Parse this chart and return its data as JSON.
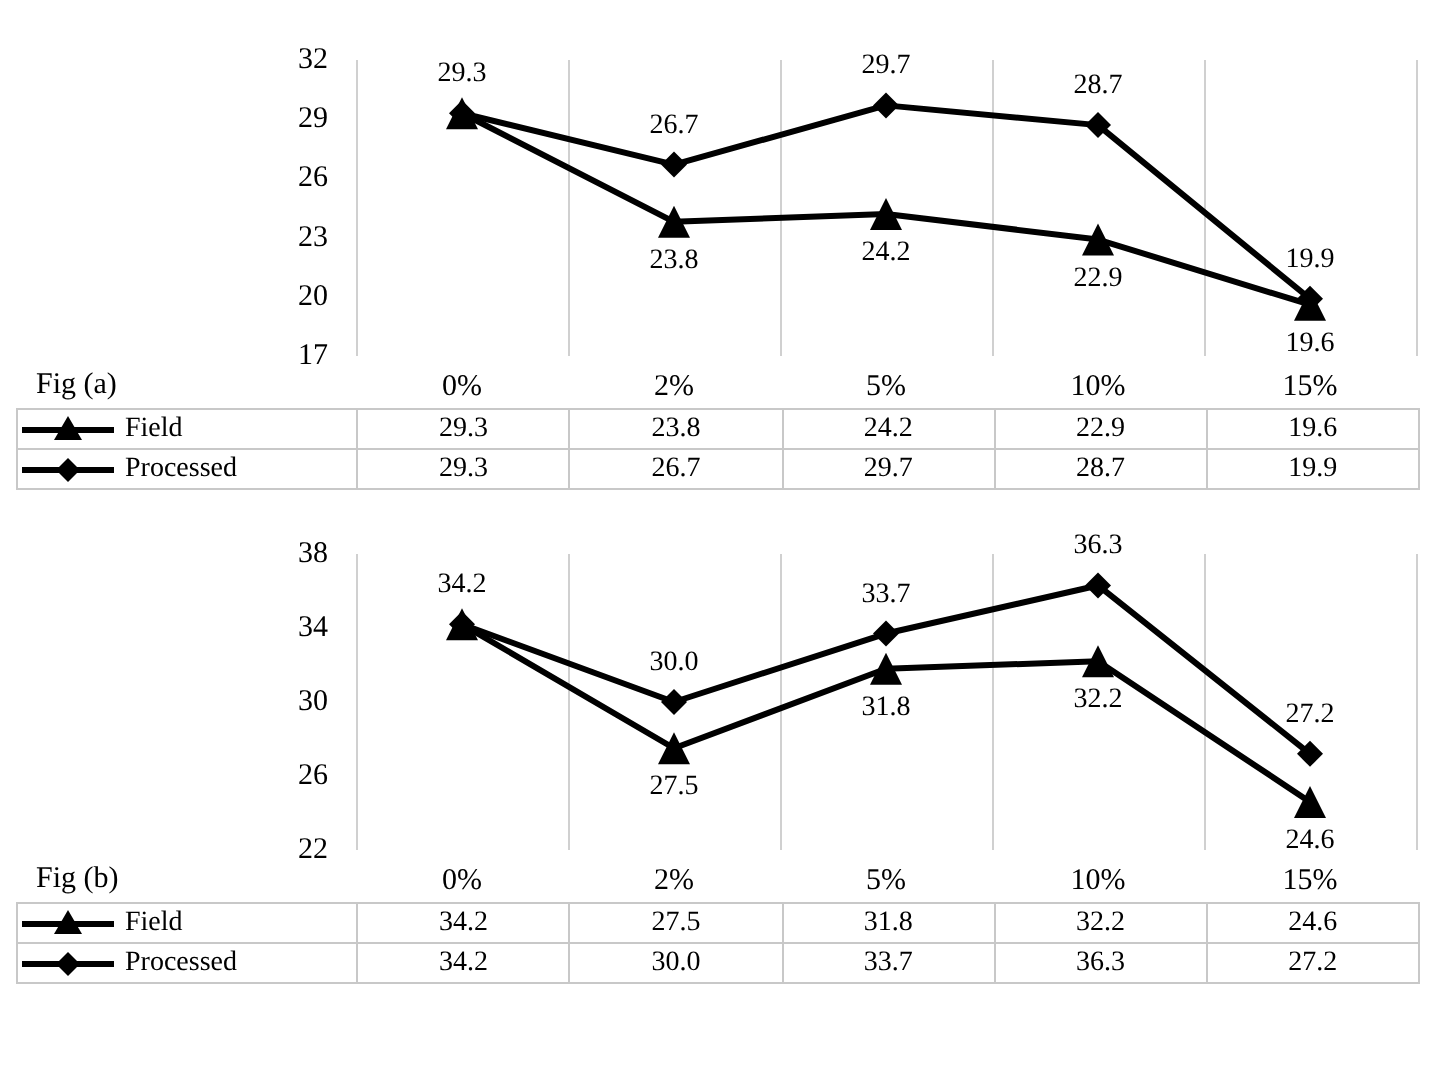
{
  "chart_data": [
    {
      "type": "line",
      "categories": [
        "0%",
        "2%",
        "5%",
        "10%",
        "15%"
      ],
      "ylim": [
        17,
        32
      ],
      "yticks": [
        17,
        20,
        23,
        26,
        29,
        32
      ],
      "grid": "x",
      "legend": "bottom",
      "line_style": "solid",
      "series": [
        {
          "name": "Field",
          "color": "#000000",
          "marker": "triangle",
          "values": [
            29.3,
            23.8,
            24.2,
            22.9,
            19.6
          ],
          "value_labels": [
            "29.3",
            "23.8",
            "24.2",
            "22.9",
            "19.6"
          ]
        },
        {
          "name": "Processed",
          "color": "#000000",
          "marker": "diamond",
          "values": [
            29.3,
            26.7,
            29.7,
            28.7,
            19.9
          ],
          "value_labels": [
            "29.3",
            "26.7",
            "29.7",
            "28.7",
            "19.9"
          ]
        }
      ],
      "annotations": [
        "Fig (a)",
        {
          "text": "29.3",
          "x": "0%",
          "y": 29.3
        },
        {
          "text": "26.7",
          "x": "2%",
          "y": 26.7
        },
        {
          "text": "23.8",
          "x": "2%",
          "y": 23.8
        },
        {
          "text": "29.7",
          "x": "5%",
          "y": 29.7
        },
        {
          "text": "24.2",
          "x": "5%",
          "y": 24.2
        },
        {
          "text": "28.7",
          "x": "10%",
          "y": 28.7
        },
        {
          "text": "22.9",
          "x": "10%",
          "y": 22.9
        },
        {
          "text": "19.9",
          "x": "15%",
          "y": 19.9
        },
        {
          "text": "19.6",
          "x": "15%",
          "y": 19.6
        }
      ]
    },
    {
      "type": "line",
      "categories": [
        "0%",
        "2%",
        "5%",
        "10%",
        "15%"
      ],
      "ylim": [
        22,
        38
      ],
      "yticks": [
        22,
        26,
        30,
        34,
        38
      ],
      "grid": "x",
      "legend": "bottom",
      "line_style": "solid",
      "series": [
        {
          "name": "Field",
          "color": "#000000",
          "marker": "triangle",
          "values": [
            34.2,
            27.5,
            31.8,
            32.2,
            24.6
          ],
          "value_labels": [
            "34.2",
            "27.5",
            "31.8",
            "32.2",
            "24.6"
          ]
        },
        {
          "name": "Processed",
          "color": "#000000",
          "marker": "diamond",
          "values": [
            34.2,
            30.0,
            33.7,
            36.3,
            27.2
          ],
          "value_labels": [
            "34.2",
            "30.0",
            "33.7",
            "36.3",
            "27.2"
          ]
        }
      ],
      "annotations": [
        "Fig (b)",
        {
          "text": "34.2",
          "x": "0%",
          "y": 34.2
        },
        {
          "text": "30.0",
          "x": "2%",
          "y": 30.0
        },
        {
          "text": "27.5",
          "x": "2%",
          "y": 27.5
        },
        {
          "text": "33.7",
          "x": "5%",
          "y": 33.7
        },
        {
          "text": "31.8",
          "x": "5%",
          "y": 31.8
        },
        {
          "text": "36.3",
          "x": "10%",
          "y": 36.3
        },
        {
          "text": "32.2",
          "x": "10%",
          "y": 32.2
        },
        {
          "text": "27.2",
          "x": "15%",
          "y": 27.2
        },
        {
          "text": "24.6",
          "x": "15%",
          "y": 24.6
        }
      ]
    }
  ]
}
